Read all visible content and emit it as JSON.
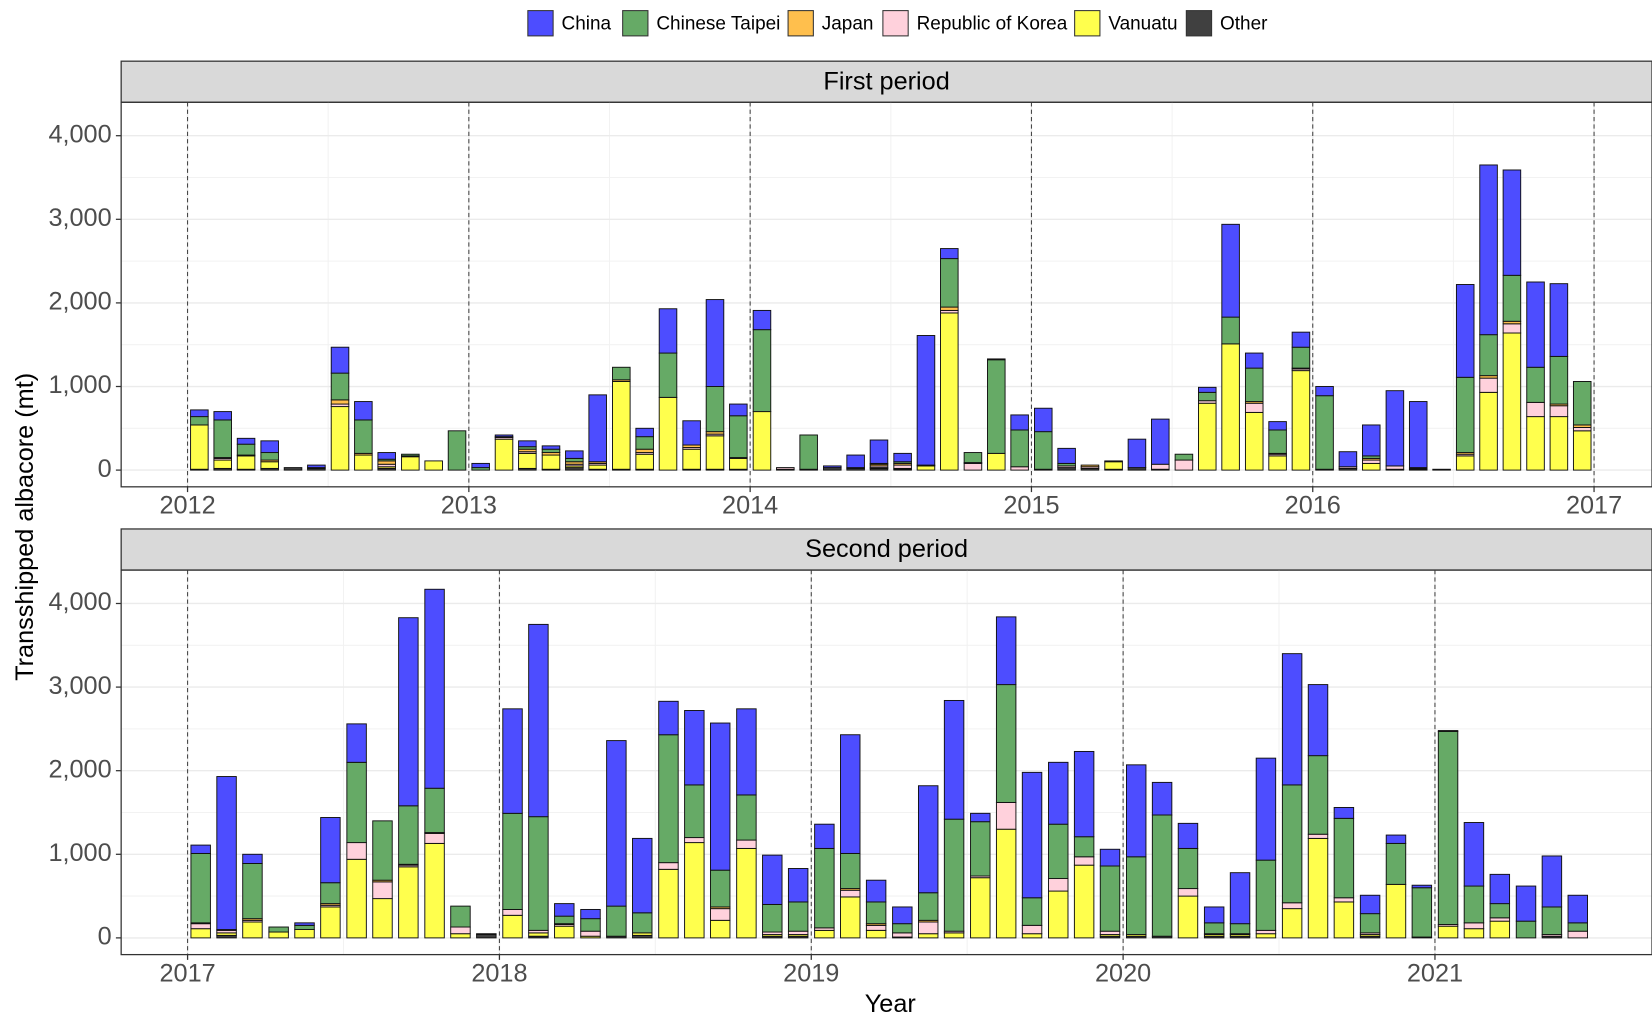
{
  "chart_data": [
    {
      "type": "bar",
      "stacked": true,
      "title": "First period",
      "y_label": "Transshipped albacore (mt)",
      "legend": "top",
      "x": [
        2012.042,
        2012.125,
        2012.208,
        2012.292,
        2012.375,
        2012.458,
        2012.542,
        2012.625,
        2012.708,
        2012.792,
        2012.875,
        2012.958,
        2013.042,
        2013.125,
        2013.208,
        2013.292,
        2013.375,
        2013.458,
        2013.542,
        2013.625,
        2013.708,
        2013.792,
        2013.875,
        2013.958,
        2014.042,
        2014.125,
        2014.208,
        2014.292,
        2014.375,
        2014.458,
        2014.542,
        2014.625,
        2014.708,
        2014.792,
        2014.875,
        2014.958,
        2015.042,
        2015.125,
        2015.208,
        2015.292,
        2015.375,
        2015.458,
        2015.542,
        2015.625,
        2015.708,
        2015.792,
        2015.875,
        2015.958,
        2016.042,
        2016.125,
        2016.208,
        2016.292,
        2016.375,
        2016.458,
        2016.542,
        2016.625,
        2016.708,
        2016.792,
        2016.875,
        2016.958
      ],
      "series": [
        {
          "name": "China",
          "color": "#4d4dff",
          "values": [
            80,
            100,
            70,
            140,
            0,
            30,
            310,
            220,
            80,
            0,
            0,
            0,
            50,
            20,
            70,
            40,
            90,
            800,
            0,
            100,
            530,
            290,
            1040,
            140,
            230,
            0,
            0,
            20,
            150,
            280,
            100,
            1550,
            120,
            0,
            10,
            180,
            280,
            180,
            0,
            10,
            340,
            540,
            0,
            60,
            1110,
            180,
            100,
            180,
            110,
            180,
            370,
            900,
            790,
            0,
            1110,
            2030,
            1260,
            1020,
            870,
            0
          ]
        },
        {
          "name": "Chinese Taipei",
          "color": "#66aa66",
          "values": [
            100,
            450,
            130,
            90,
            0,
            10,
            320,
            400,
            20,
            20,
            0,
            470,
            30,
            0,
            30,
            40,
            40,
            0,
            150,
            150,
            530,
            0,
            540,
            500,
            980,
            0,
            410,
            0,
            10,
            10,
            20,
            10,
            580,
            120,
            1120,
            440,
            450,
            30,
            0,
            0,
            0,
            0,
            70,
            100,
            320,
            400,
            280,
            250,
            880,
            0,
            30,
            0,
            0,
            0,
            900,
            490,
            550,
            420,
            570,
            520
          ]
        },
        {
          "name": "Japan",
          "color": "#ffbf4d",
          "values": [
            0,
            10,
            10,
            20,
            0,
            0,
            50,
            20,
            40,
            10,
            0,
            0,
            0,
            10,
            30,
            30,
            30,
            20,
            20,
            40,
            0,
            30,
            30,
            10,
            0,
            0,
            0,
            0,
            0,
            20,
            20,
            0,
            40,
            10,
            0,
            0,
            0,
            0,
            20,
            0,
            0,
            0,
            0,
            0,
            0,
            20,
            10,
            10,
            0,
            0,
            20,
            0,
            10,
            0,
            20,
            30,
            30,
            0,
            20,
            30
          ]
        },
        {
          "name": "Republic of Korea",
          "color": "#ffd1dc",
          "values": [
            0,
            20,
            0,
            0,
            0,
            0,
            30,
            0,
            30,
            0,
            0,
            0,
            0,
            20,
            20,
            0,
            20,
            20,
            0,
            20,
            0,
            20,
            20,
            0,
            0,
            20,
            0,
            0,
            0,
            20,
            40,
            0,
            30,
            80,
            0,
            40,
            0,
            20,
            20,
            0,
            0,
            60,
            120,
            30,
            0,
            110,
            20,
            20,
            0,
            20,
            40,
            40,
            10,
            0,
            20,
            170,
            110,
            170,
            130,
            40
          ]
        },
        {
          "name": "Vanuatu",
          "color": "#ffff4d",
          "values": [
            530,
            100,
            160,
            80,
            0,
            0,
            760,
            180,
            20,
            160,
            110,
            0,
            0,
            370,
            180,
            170,
            20,
            50,
            1050,
            180,
            870,
            240,
            400,
            130,
            700,
            0,
            0,
            0,
            0,
            10,
            10,
            50,
            1880,
            0,
            200,
            0,
            0,
            0,
            0,
            90,
            0,
            0,
            0,
            800,
            1510,
            690,
            170,
            1190,
            0,
            0,
            80,
            0,
            0,
            0,
            170,
            930,
            1640,
            640,
            640,
            470
          ]
        },
        {
          "name": "Other",
          "color": "#404040",
          "values": [
            10,
            20,
            10,
            20,
            30,
            20,
            0,
            0,
            20,
            0,
            0,
            0,
            0,
            0,
            20,
            10,
            30,
            10,
            10,
            10,
            0,
            10,
            10,
            10,
            0,
            10,
            10,
            30,
            20,
            20,
            10,
            0,
            0,
            0,
            0,
            0,
            10,
            30,
            20,
            10,
            30,
            10,
            0,
            0,
            0,
            0,
            0,
            0,
            10,
            20,
            0,
            10,
            10,
            10,
            0,
            0,
            0,
            0,
            0,
            0
          ]
        }
      ],
      "xlim": [
        2011.764,
        2017.206
      ],
      "xticks": [
        2012,
        2013,
        2014,
        2015,
        2016,
        2017
      ],
      "ylim": [
        -200,
        4400
      ],
      "yticks": [
        0,
        {
          "value": 1000,
          "label": "1,000"
        },
        {
          "value": 2000,
          "label": "2,000"
        },
        {
          "value": 3000,
          "label": "3,000"
        },
        {
          "value": 4000,
          "label": "4,000"
        }
      ],
      "grid": true
    },
    {
      "type": "bar",
      "stacked": true,
      "title": "Second period",
      "x_label": "Year",
      "x": [
        2017.042,
        2017.125,
        2017.208,
        2017.292,
        2017.375,
        2017.458,
        2017.542,
        2017.625,
        2017.708,
        2017.792,
        2017.875,
        2017.958,
        2018.042,
        2018.125,
        2018.208,
        2018.292,
        2018.375,
        2018.458,
        2018.542,
        2018.625,
        2018.708,
        2018.792,
        2018.875,
        2018.958,
        2019.042,
        2019.125,
        2019.208,
        2019.292,
        2019.375,
        2019.458,
        2019.542,
        2019.625,
        2019.708,
        2019.792,
        2019.875,
        2019.958,
        2020.042,
        2020.125,
        2020.208,
        2020.292,
        2020.375,
        2020.458,
        2020.542,
        2020.625,
        2020.708,
        2020.792,
        2020.875,
        2020.958,
        2021.042,
        2021.125,
        2021.208,
        2021.292,
        2021.375,
        2021.458
      ],
      "series": [
        {
          "name": "China",
          "color": "#4d4dff",
          "values": [
            100,
            1830,
            110,
            0,
            30,
            780,
            460,
            0,
            2250,
            2380,
            0,
            10,
            1250,
            2300,
            150,
            110,
            1980,
            890,
            400,
            890,
            1760,
            1030,
            590,
            400,
            290,
            1420,
            260,
            200,
            1280,
            1420,
            100,
            810,
            1500,
            740,
            1020,
            200,
            1100,
            390,
            300,
            190,
            610,
            1220,
            1570,
            850,
            130,
            220,
            100,
            30,
            10,
            760,
            350,
            420,
            610,
            330
          ]
        },
        {
          "name": "Chinese Taipei",
          "color": "#66aa66",
          "values": [
            830,
            0,
            660,
            60,
            50,
            250,
            960,
            710,
            700,
            530,
            250,
            0,
            1150,
            1360,
            90,
            150,
            360,
            240,
            1530,
            630,
            440,
            540,
            330,
            350,
            950,
            420,
            260,
            110,
            330,
            1340,
            650,
            1410,
            330,
            650,
            240,
            780,
            930,
            1450,
            480,
            130,
            120,
            840,
            1410,
            940,
            950,
            230,
            490,
            590,
            2310,
            440,
            170,
            200,
            330,
            100
          ]
        },
        {
          "name": "Japan",
          "color": "#ffbf4d",
          "values": [
            10,
            10,
            20,
            0,
            0,
            20,
            0,
            20,
            10,
            10,
            0,
            0,
            0,
            0,
            10,
            0,
            0,
            0,
            0,
            0,
            20,
            0,
            0,
            0,
            0,
            20,
            20,
            0,
            20,
            0,
            0,
            0,
            0,
            0,
            0,
            0,
            0,
            0,
            0,
            0,
            0,
            0,
            0,
            0,
            0,
            0,
            0,
            0,
            0,
            0,
            0,
            0,
            0,
            0
          ]
        },
        {
          "name": "Republic of Korea",
          "color": "#ffd1dc",
          "values": [
            60,
            30,
            20,
            0,
            0,
            20,
            200,
            200,
            20,
            120,
            80,
            0,
            70,
            30,
            20,
            60,
            0,
            0,
            80,
            60,
            140,
            100,
            30,
            40,
            30,
            80,
            60,
            50,
            140,
            20,
            20,
            320,
            100,
            150,
            100,
            40,
            0,
            0,
            90,
            10,
            10,
            40,
            70,
            50,
            50,
            20,
            0,
            0,
            20,
            70,
            40,
            0,
            20,
            80
          ]
        },
        {
          "name": "Vanuatu",
          "color": "#ffff4d",
          "values": [
            110,
            30,
            190,
            70,
            100,
            370,
            940,
            470,
            850,
            1130,
            50,
            0,
            270,
            40,
            140,
            20,
            0,
            30,
            820,
            1140,
            210,
            1070,
            20,
            20,
            90,
            490,
            90,
            0,
            50,
            60,
            720,
            1300,
            50,
            560,
            870,
            20,
            20,
            0,
            500,
            20,
            20,
            50,
            350,
            1190,
            430,
            20,
            640,
            0,
            140,
            110,
            200,
            0,
            0,
            0
          ]
        },
        {
          "name": "Other",
          "color": "#404040",
          "values": [
            0,
            30,
            0,
            0,
            0,
            0,
            0,
            0,
            0,
            0,
            0,
            40,
            0,
            20,
            0,
            0,
            20,
            30,
            0,
            0,
            0,
            0,
            20,
            20,
            0,
            0,
            0,
            10,
            0,
            0,
            0,
            0,
            0,
            0,
            0,
            20,
            20,
            20,
            0,
            20,
            20,
            0,
            0,
            0,
            0,
            20,
            0,
            10,
            0,
            0,
            0,
            0,
            20,
            0
          ]
        }
      ],
      "xlim": [
        2016.787,
        2021.696
      ],
      "xticks": [
        2017,
        2018,
        2019,
        2020,
        2021
      ],
      "ylim": [
        -200,
        4400
      ],
      "yticks": [
        0,
        {
          "value": 1000,
          "label": "1,000"
        },
        {
          "value": 2000,
          "label": "2,000"
        },
        {
          "value": 3000,
          "label": "3,000"
        },
        {
          "value": 4000,
          "label": "4,000"
        }
      ],
      "grid": true
    }
  ]
}
